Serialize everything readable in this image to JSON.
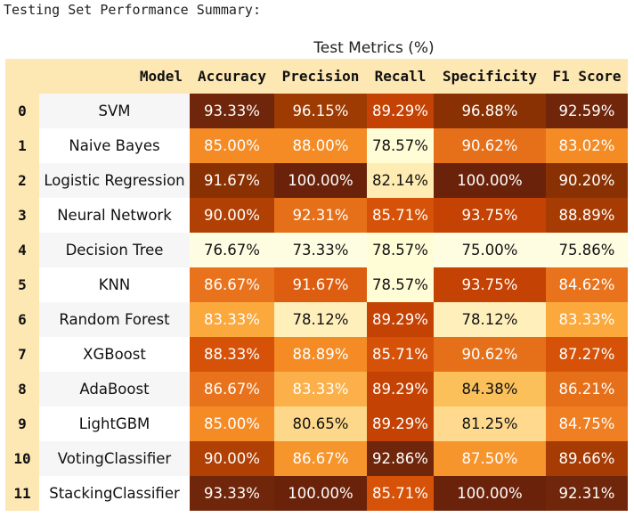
{
  "output_title": "Testing Set Performance Summary:",
  "caption": "Test Metrics (%)",
  "columns": [
    "",
    "Model",
    "Accuracy",
    "Precision",
    "Recall",
    "Specificity",
    "F1 Score"
  ],
  "rows": [
    {
      "index": "0",
      "model": "SVM",
      "values": [
        "93.33%",
        "96.15%",
        "89.29%",
        "96.88%",
        "92.59%"
      ],
      "colors": [
        "#6f260a",
        "#9e3b03",
        "#c44203",
        "#8a3103",
        "#6f260a"
      ],
      "text_colors": [
        "#ffffff",
        "#ffffff",
        "#ffffff",
        "#ffffff",
        "#ffffff"
      ]
    },
    {
      "index": "1",
      "model": "Naive Bayes",
      "values": [
        "85.00%",
        "88.00%",
        "78.57%",
        "90.62%",
        "83.02%"
      ],
      "colors": [
        "#f48b25",
        "#f48b25",
        "#fffdd6",
        "#e6701a",
        "#f48b25"
      ],
      "text_colors": [
        "#ffffff",
        "#ffffff",
        "#111111",
        "#ffffff",
        "#ffffff"
      ]
    },
    {
      "index": "2",
      "model": "Logistic Regression",
      "values": [
        "91.67%",
        "100.00%",
        "82.14%",
        "100.00%",
        "90.20%"
      ],
      "colors": [
        "#8a3103",
        "#6a220a",
        "#feecb3",
        "#6a220a",
        "#8a3103"
      ],
      "text_colors": [
        "#ffffff",
        "#ffffff",
        "#111111",
        "#ffffff",
        "#ffffff"
      ]
    },
    {
      "index": "3",
      "model": "Neural Network",
      "values": [
        "90.00%",
        "92.31%",
        "85.71%",
        "93.75%",
        "88.89%"
      ],
      "colors": [
        "#b04003",
        "#e6701a",
        "#d65208",
        "#c44203",
        "#a63c03"
      ],
      "text_colors": [
        "#ffffff",
        "#ffffff",
        "#ffffff",
        "#ffffff",
        "#ffffff"
      ]
    },
    {
      "index": "4",
      "model": "Decision Tree",
      "values": [
        "76.67%",
        "73.33%",
        "78.57%",
        "75.00%",
        "75.86%"
      ],
      "colors": [
        "#fffde1",
        "#fffde1",
        "#fffdd6",
        "#fffde1",
        "#fffde1"
      ],
      "text_colors": [
        "#111111",
        "#111111",
        "#111111",
        "#111111",
        "#111111"
      ]
    },
    {
      "index": "5",
      "model": "KNN",
      "values": [
        "86.67%",
        "91.67%",
        "78.57%",
        "93.75%",
        "84.62%"
      ],
      "colors": [
        "#e8731c",
        "#dd5e10",
        "#fffdd6",
        "#c44203",
        "#e8731c"
      ],
      "text_colors": [
        "#ffffff",
        "#ffffff",
        "#111111",
        "#ffffff",
        "#ffffff"
      ]
    },
    {
      "index": "6",
      "model": "Random Forest",
      "values": [
        "83.33%",
        "78.12%",
        "89.29%",
        "78.12%",
        "83.33%"
      ],
      "colors": [
        "#fba83c",
        "#fff0bb",
        "#c44203",
        "#fff0bb",
        "#fba83c"
      ],
      "text_colors": [
        "#ffffff",
        "#111111",
        "#ffffff",
        "#111111",
        "#ffffff"
      ]
    },
    {
      "index": "7",
      "model": "XGBoost",
      "values": [
        "88.33%",
        "88.89%",
        "85.71%",
        "90.62%",
        "87.27%"
      ],
      "colors": [
        "#d65208",
        "#f48b25",
        "#d65208",
        "#e6701a",
        "#d65208"
      ],
      "text_colors": [
        "#ffffff",
        "#ffffff",
        "#ffffff",
        "#ffffff",
        "#ffffff"
      ]
    },
    {
      "index": "8",
      "model": "AdaBoost",
      "values": [
        "86.67%",
        "83.33%",
        "89.29%",
        "84.38%",
        "86.21%"
      ],
      "colors": [
        "#e8731c",
        "#fbb04a",
        "#c44203",
        "#fcc05a",
        "#e6701a"
      ],
      "text_colors": [
        "#ffffff",
        "#ffffff",
        "#ffffff",
        "#111111",
        "#ffffff"
      ]
    },
    {
      "index": "9",
      "model": "LightGBM",
      "values": [
        "85.00%",
        "80.65%",
        "89.29%",
        "81.25%",
        "84.75%"
      ],
      "colors": [
        "#f48b25",
        "#fed88a",
        "#c44203",
        "#fed98e",
        "#f07e22"
      ],
      "text_colors": [
        "#ffffff",
        "#111111",
        "#ffffff",
        "#111111",
        "#ffffff"
      ]
    },
    {
      "index": "10",
      "model": "VotingClassifier",
      "values": [
        "90.00%",
        "86.67%",
        "92.86%",
        "87.50%",
        "89.66%"
      ],
      "colors": [
        "#b04003",
        "#f7952d",
        "#6f260a",
        "#f7952d",
        "#a63c03"
      ],
      "text_colors": [
        "#ffffff",
        "#ffffff",
        "#ffffff",
        "#ffffff",
        "#ffffff"
      ]
    },
    {
      "index": "11",
      "model": "StackingClassifier",
      "values": [
        "93.33%",
        "100.00%",
        "85.71%",
        "100.00%",
        "92.31%"
      ],
      "colors": [
        "#6f260a",
        "#6a220a",
        "#d65208",
        "#6a220a",
        "#6f260a"
      ],
      "text_colors": [
        "#ffffff",
        "#ffffff",
        "#ffffff",
        "#ffffff",
        "#ffffff"
      ]
    }
  ]
}
